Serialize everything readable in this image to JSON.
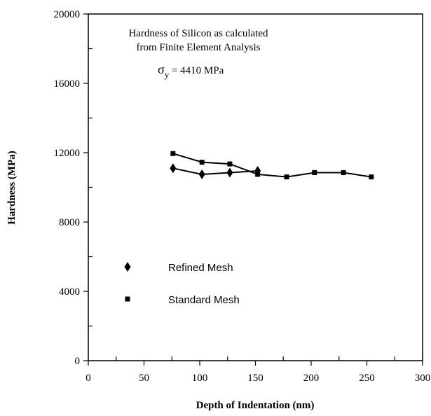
{
  "chart_data": {
    "type": "line",
    "title": "",
    "annotation_lines": [
      "Hardness of Silicon as calculated",
      "from Finite Element Analysis"
    ],
    "sigma_symbol": "σ",
    "sigma_subscript": "y",
    "sigma_value": " = 4410 MPa",
    "xlabel": "Depth of Indentation (nm)",
    "ylabel": "Hardness (MPa)",
    "xlim": [
      0,
      300
    ],
    "ylim": [
      0,
      20000
    ],
    "xticks": [
      0,
      50,
      100,
      150,
      200,
      250,
      300
    ],
    "yticks": [
      0,
      4000,
      8000,
      12000,
      16000,
      20000
    ],
    "grid": false,
    "legend_position": "middle-left",
    "series": [
      {
        "name": "Refined Mesh",
        "marker": "diamond",
        "color": "#000000",
        "x": [
          76,
          102,
          127,
          152
        ],
        "y": [
          11100,
          10750,
          10850,
          10950
        ]
      },
      {
        "name": "Standard Mesh",
        "marker": "square",
        "color": "#000000",
        "x": [
          76,
          102,
          127,
          152,
          178,
          203,
          229,
          254
        ],
        "y": [
          11950,
          11450,
          11350,
          10750,
          10600,
          10850,
          10850,
          10600
        ]
      }
    ]
  }
}
